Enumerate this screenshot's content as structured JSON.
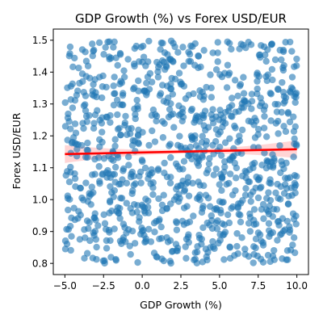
{
  "chart_data": {
    "type": "scatter",
    "title": "GDP Growth (%) vs Forex USD/EUR",
    "xlabel": "GDP Growth (%)",
    "ylabel": "Forex USD/EUR",
    "xlim": [
      -5.75,
      10.75
    ],
    "ylim": [
      0.765,
      1.535
    ],
    "xticks": [
      -5.0,
      -2.5,
      0.0,
      2.5,
      5.0,
      7.5,
      10.0
    ],
    "xtick_labels": [
      "−5.0",
      "−2.5",
      "0.0",
      "2.5",
      "5.0",
      "7.5",
      "10.0"
    ],
    "yticks": [
      0.8,
      0.9,
      1.0,
      1.1,
      1.2,
      1.3,
      1.4,
      1.5
    ],
    "ytick_labels": [
      "0.8",
      "0.9",
      "1.0",
      "1.1",
      "1.2",
      "1.3",
      "1.4",
      "1.5"
    ],
    "grid": false,
    "point_color": "#1f77b4",
    "point_alpha": 0.6,
    "point_count": 1000,
    "x_range": [
      -5.0,
      10.0
    ],
    "y_range": [
      0.8,
      1.5
    ],
    "trend_line": {
      "x": [
        -5.0,
        10.0
      ],
      "y": [
        1.143,
        1.158
      ],
      "color": "#ff0000"
    },
    "confidence_band_color": "#ffb3b3"
  }
}
